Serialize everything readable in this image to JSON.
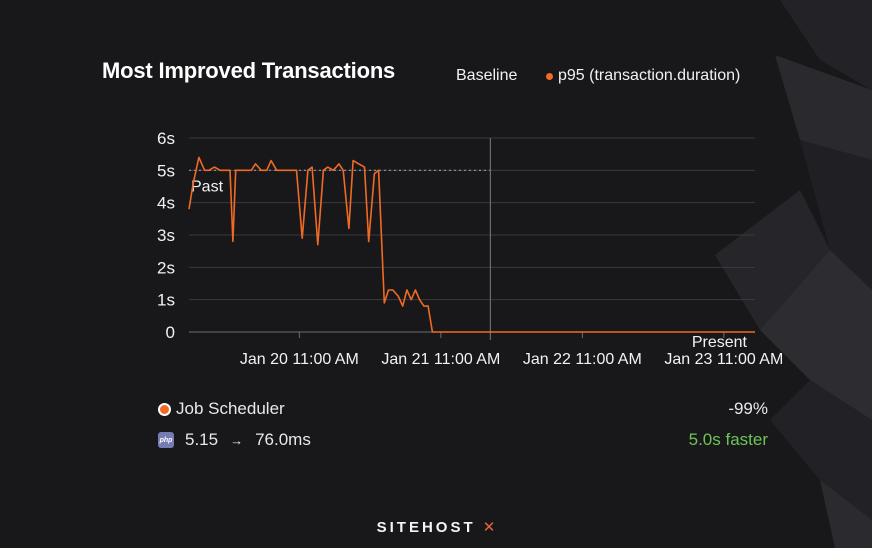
{
  "header": {
    "title": "Most Improved Transactions",
    "legend_baseline": "Baseline",
    "legend_series": "p95 (transaction.duration)"
  },
  "colors": {
    "series": "#f06a24",
    "faster": "#6dc454",
    "background": "#18181b"
  },
  "chart_data": {
    "type": "line",
    "title": "Most Improved Transactions",
    "y_ticks": [
      "6s",
      "5s",
      "4s",
      "3s",
      "2s",
      "1s",
      "0"
    ],
    "y_tick_values": [
      6,
      5,
      4,
      3,
      2,
      1,
      0
    ],
    "ylim": [
      0,
      6
    ],
    "x_ticks": [
      "Jan 20 11:00 AM",
      "Jan 21 11:00 AM",
      "Jan 22 11:00 AM",
      "Jan 23 11:00 AM"
    ],
    "x_tick_values": [
      1.0,
      2.0,
      3.0,
      4.0
    ],
    "xlim": [
      0.22,
      4.22
    ],
    "baseline_value": 5.0,
    "baseline_end": 2.35,
    "divider_x": 2.35,
    "annotations": {
      "past": "Past",
      "present": "Present"
    },
    "series": [
      {
        "name": "p95 (transaction.duration)",
        "x": [
          0.22,
          0.25,
          0.29,
          0.33,
          0.36,
          0.4,
          0.44,
          0.48,
          0.51,
          0.53,
          0.55,
          0.59,
          0.62,
          0.66,
          0.69,
          0.73,
          0.77,
          0.8,
          0.84,
          0.88,
          0.91,
          0.95,
          0.98,
          1.02,
          1.06,
          1.09,
          1.13,
          1.17,
          1.2,
          1.24,
          1.28,
          1.31,
          1.35,
          1.38,
          1.42,
          1.46,
          1.49,
          1.53,
          1.56,
          1.6,
          1.63,
          1.66,
          1.7,
          1.73,
          1.76,
          1.79,
          1.82,
          1.85,
          1.88,
          1.91,
          1.94,
          1.97,
          2.0,
          2.03,
          2.06,
          2.09,
          2.12,
          2.15,
          2.18,
          2.21,
          2.24,
          2.27,
          2.3,
          2.33,
          2.36,
          2.39,
          2.42,
          2.45,
          2.48,
          2.53,
          2.6,
          3.0,
          3.5,
          4.0,
          4.22
        ],
        "values": [
          3.8,
          4.6,
          5.4,
          5.0,
          5.0,
          5.1,
          5.0,
          5.0,
          5.0,
          2.8,
          5.0,
          5.0,
          5.0,
          5.0,
          5.2,
          5.0,
          5.0,
          5.3,
          5.0,
          5.0,
          5.0,
          5.0,
          5.0,
          2.9,
          5.0,
          5.1,
          2.7,
          5.0,
          5.1,
          5.0,
          5.2,
          5.0,
          3.2,
          5.3,
          5.2,
          5.1,
          2.8,
          4.9,
          5.0,
          0.9,
          1.3,
          1.3,
          1.1,
          0.8,
          1.3,
          1.0,
          1.3,
          1.0,
          0.8,
          0.8,
          0.0,
          0.0,
          0.0,
          0.0,
          0.0,
          0.0,
          0.0,
          0.0,
          0.0,
          0.0,
          0.0,
          0.0,
          0.0,
          0.0,
          0.0,
          0.0,
          0.0,
          0.0,
          0.0,
          0.0,
          0.0,
          0.0,
          0.0,
          0.0,
          0.0
        ]
      }
    ]
  },
  "transaction": {
    "name": "Job Scheduler",
    "change_pct": "-99%",
    "platform_icon": "php",
    "before": "5.15",
    "arrow": "→",
    "after": "76.0ms",
    "delta": "5.0s faster"
  },
  "brand": {
    "name": "SITEHOST",
    "mark": "✕"
  }
}
